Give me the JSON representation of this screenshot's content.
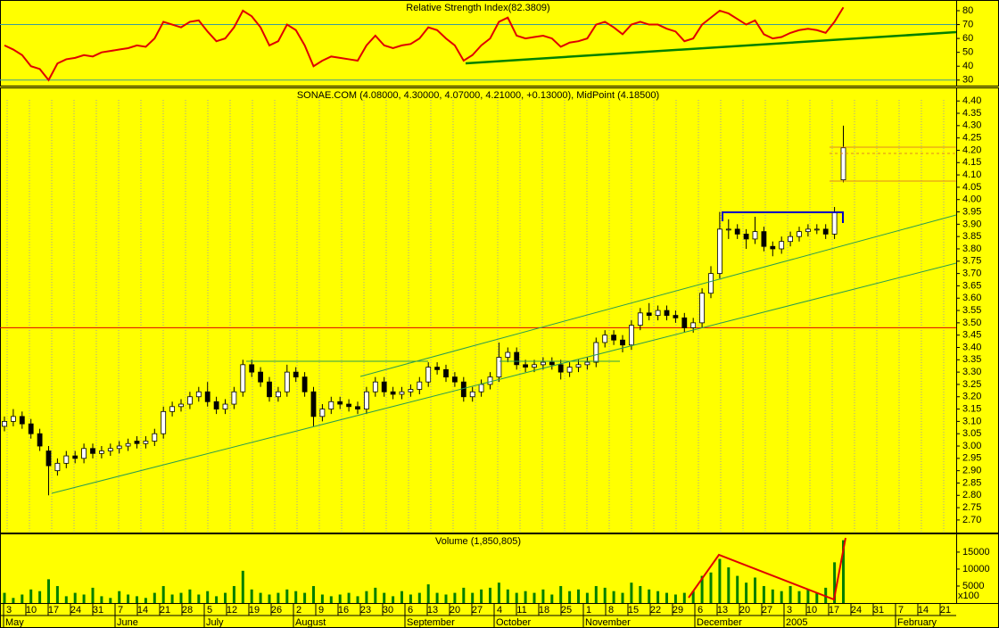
{
  "chart_data": [
    {
      "type": "line",
      "title": "Relative Strength Index(82.3809)",
      "color": "#e00000",
      "values": [
        55,
        52,
        48,
        40,
        38,
        30,
        42,
        45,
        46,
        48,
        47,
        50,
        51,
        52,
        53,
        55,
        54,
        60,
        72,
        70,
        68,
        72,
        73,
        65,
        58,
        60,
        68,
        80,
        76,
        68,
        55,
        58,
        70,
        66,
        55,
        40,
        44,
        47,
        46,
        45,
        44,
        55,
        62,
        55,
        53,
        55,
        56,
        60,
        68,
        66,
        60,
        55,
        44,
        48,
        55,
        60,
        72,
        75,
        62,
        60,
        61,
        62,
        60,
        54,
        57,
        58,
        60,
        70,
        72,
        68,
        63,
        70,
        72,
        70,
        70,
        67,
        65,
        58,
        60,
        70,
        75,
        80,
        78,
        74,
        70,
        73,
        63,
        60,
        61,
        64,
        66,
        67,
        66,
        64,
        72,
        82.3809
      ],
      "ylim": [
        26,
        87.7
      ],
      "yticks": [
        30,
        40,
        50,
        60,
        70,
        80
      ],
      "levels": [
        70,
        30
      ]
    },
    {
      "type": "candlestick",
      "title": "SONAE.COM (4.08000, 4.30000, 4.07000, 4.21000, +0.13000), MidPoint (4.18500)",
      "open": [
        3.08,
        3.1,
        3.12,
        3.09,
        3.05,
        2.98,
        2.9,
        2.93,
        2.96,
        2.95,
        2.99,
        2.97,
        2.98,
        2.99,
        3.0,
        3.02,
        3.01,
        3.02,
        3.05,
        3.14,
        3.16,
        3.17,
        3.2,
        3.22,
        3.18,
        3.15,
        3.17,
        3.22,
        3.33,
        3.3,
        3.26,
        3.2,
        3.22,
        3.3,
        3.28,
        3.22,
        3.12,
        3.15,
        3.18,
        3.17,
        3.16,
        3.15,
        3.22,
        3.26,
        3.22,
        3.21,
        3.22,
        3.23,
        3.26,
        3.32,
        3.31,
        3.28,
        3.26,
        3.2,
        3.22,
        3.25,
        3.28,
        3.36,
        3.38,
        3.33,
        3.32,
        3.33,
        3.34,
        3.33,
        3.3,
        3.32,
        3.33,
        3.34,
        3.42,
        3.45,
        3.43,
        3.41,
        3.49,
        3.54,
        3.53,
        3.55,
        3.53,
        3.52,
        3.48,
        3.5,
        3.62,
        3.7,
        3.88,
        3.88,
        3.86,
        3.84,
        3.87,
        3.81,
        3.8,
        3.83,
        3.85,
        3.87,
        3.88,
        3.88,
        3.86,
        4.08
      ],
      "high": [
        3.12,
        3.15,
        3.14,
        3.11,
        3.07,
        3.0,
        2.95,
        2.98,
        2.98,
        3.01,
        3.01,
        3.0,
        3.01,
        3.02,
        3.03,
        3.04,
        3.04,
        3.07,
        3.16,
        3.18,
        3.19,
        3.22,
        3.24,
        3.26,
        3.2,
        3.19,
        3.24,
        3.35,
        3.35,
        3.32,
        3.28,
        3.24,
        3.33,
        3.32,
        3.3,
        3.24,
        3.17,
        3.2,
        3.2,
        3.19,
        3.18,
        3.24,
        3.28,
        3.28,
        3.24,
        3.24,
        3.25,
        3.28,
        3.34,
        3.34,
        3.33,
        3.3,
        3.28,
        3.24,
        3.27,
        3.3,
        3.42,
        3.4,
        3.4,
        3.35,
        3.35,
        3.36,
        3.36,
        3.35,
        3.34,
        3.35,
        3.36,
        3.44,
        3.47,
        3.47,
        3.45,
        3.51,
        3.56,
        3.58,
        3.57,
        3.57,
        3.55,
        3.54,
        3.52,
        3.64,
        3.73,
        3.95,
        3.92,
        3.9,
        3.88,
        3.93,
        3.89,
        3.83,
        3.85,
        3.87,
        3.89,
        3.9,
        3.9,
        3.9,
        3.97,
        4.3
      ],
      "low": [
        3.06,
        3.08,
        3.07,
        3.03,
        2.98,
        2.8,
        2.88,
        2.91,
        2.93,
        2.93,
        2.95,
        2.95,
        2.96,
        2.97,
        2.98,
        2.99,
        2.99,
        3.0,
        3.03,
        3.12,
        3.14,
        3.15,
        3.18,
        3.16,
        3.13,
        3.13,
        3.15,
        3.2,
        3.28,
        3.24,
        3.18,
        3.18,
        3.2,
        3.26,
        3.2,
        3.08,
        3.1,
        3.13,
        3.15,
        3.14,
        3.13,
        3.13,
        3.2,
        3.2,
        3.19,
        3.19,
        3.2,
        3.21,
        3.24,
        3.29,
        3.26,
        3.24,
        3.18,
        3.18,
        3.2,
        3.23,
        3.26,
        3.34,
        3.31,
        3.3,
        3.3,
        3.31,
        3.31,
        3.27,
        3.28,
        3.3,
        3.31,
        3.32,
        3.4,
        3.41,
        3.38,
        3.39,
        3.47,
        3.51,
        3.51,
        3.51,
        3.5,
        3.46,
        3.46,
        3.48,
        3.6,
        3.68,
        3.84,
        3.84,
        3.8,
        3.82,
        3.79,
        3.77,
        3.78,
        3.81,
        3.83,
        3.85,
        3.86,
        3.84,
        3.84,
        4.07
      ],
      "close": [
        3.1,
        3.12,
        3.09,
        3.05,
        3.0,
        2.92,
        2.93,
        2.96,
        2.95,
        2.99,
        2.97,
        2.98,
        2.99,
        3.0,
        3.01,
        3.01,
        3.02,
        3.05,
        3.14,
        3.16,
        3.17,
        3.2,
        3.22,
        3.18,
        3.15,
        3.17,
        3.22,
        3.33,
        3.3,
        3.26,
        3.2,
        3.22,
        3.3,
        3.28,
        3.22,
        3.12,
        3.15,
        3.18,
        3.17,
        3.16,
        3.15,
        3.22,
        3.26,
        3.22,
        3.21,
        3.22,
        3.23,
        3.26,
        3.32,
        3.31,
        3.28,
        3.26,
        3.2,
        3.22,
        3.25,
        3.28,
        3.36,
        3.38,
        3.33,
        3.32,
        3.33,
        3.34,
        3.33,
        3.3,
        3.32,
        3.33,
        3.34,
        3.42,
        3.45,
        3.43,
        3.41,
        3.49,
        3.54,
        3.53,
        3.55,
        3.53,
        3.52,
        3.48,
        3.5,
        3.62,
        3.7,
        3.88,
        3.88,
        3.86,
        3.84,
        3.87,
        3.81,
        3.8,
        3.83,
        3.85,
        3.87,
        3.88,
        3.88,
        3.86,
        3.95,
        4.21
      ],
      "ylim": [
        2.649,
        4.455
      ],
      "yticks": [
        {
          "value": 2.7,
          "label": "2.70"
        },
        2.75,
        {
          "value": 2.8,
          "label": "2.80"
        },
        2.85,
        {
          "value": 2.9,
          "label": "2.90"
        },
        2.95,
        {
          "value": 3,
          "label": "3.00"
        },
        3.05,
        {
          "value": 3.1,
          "label": "3.10"
        },
        3.15,
        {
          "value": 3.2,
          "label": "3.20"
        },
        3.25,
        {
          "value": 3.3,
          "label": "3.30"
        },
        3.35,
        {
          "value": 3.4,
          "label": "3.40"
        },
        3.45,
        {
          "value": 3.5,
          "label": "3.50"
        },
        3.55,
        {
          "value": 3.6,
          "label": "3.60"
        },
        3.65,
        {
          "value": 3.7,
          "label": "3.70"
        },
        3.75,
        {
          "value": 3.8,
          "label": "3.80"
        },
        3.85,
        {
          "value": 3.9,
          "label": "3.90"
        },
        3.95,
        {
          "value": 4,
          "label": "4.00"
        },
        4.05,
        {
          "value": 4.1,
          "label": "4.10"
        },
        4.15,
        {
          "value": 4.2,
          "label": "4.20"
        },
        4.25,
        {
          "value": 4.3,
          "label": "4.30"
        },
        4.35,
        {
          "value": 4.4,
          "label": "4.40"
        }
      ],
      "levels": [
        3.48
      ]
    },
    {
      "type": "bar",
      "title": "Volume (1,850,805)",
      "color": "#008000",
      "unit_label": "x100",
      "values": [
        3000,
        1500,
        2500,
        4000,
        3500,
        7000,
        5000,
        2000,
        3000,
        2500,
        4500,
        2000,
        1500,
        3500,
        2500,
        2000,
        1500,
        3000,
        5000,
        2500,
        3000,
        4000,
        2500,
        3500,
        2000,
        3000,
        5000,
        9500,
        4000,
        3000,
        2500,
        3000,
        4000,
        3500,
        3000,
        5000,
        2500,
        2000,
        2500,
        3000,
        2000,
        3500,
        4500,
        3000,
        2000,
        3500,
        2500,
        3000,
        5500,
        3000,
        2500,
        3000,
        4500,
        3000,
        4000,
        4500,
        6000,
        4000,
        3000,
        3500,
        3000,
        4000,
        2500,
        5000,
        3500,
        4000,
        3000,
        5000,
        4500,
        3500,
        3000,
        6000,
        5000,
        4000,
        3500,
        3000,
        2500,
        3000,
        3500,
        8000,
        9000,
        13000,
        10500,
        8000,
        6000,
        7500,
        5000,
        4000,
        3500,
        5000,
        3500,
        4000,
        3000,
        4500,
        12000,
        18508.05
      ],
      "ylim": [
        0,
        20500
      ],
      "yticks": [
        5000,
        10000,
        15000
      ]
    }
  ],
  "date_axis": {
    "days": [
      "3",
      "10",
      "17",
      "24",
      "31",
      "7",
      "14",
      "21",
      "28",
      "5",
      "12",
      "19",
      "26",
      "2",
      "9",
      "16",
      "23",
      "30",
      "6",
      "13",
      "20",
      "27",
      "4",
      "11",
      "18",
      "25",
      "1",
      "8",
      "15",
      "22",
      "29",
      "6",
      "13",
      "20",
      "27",
      "3",
      "10",
      "17",
      "24",
      "31",
      "7",
      "14",
      "21"
    ],
    "months": [
      "May",
      null,
      null,
      null,
      null,
      "June",
      null,
      null,
      null,
      "July",
      null,
      null,
      null,
      "August",
      null,
      null,
      null,
      null,
      "September",
      null,
      null,
      null,
      "October",
      null,
      null,
      null,
      "November",
      null,
      null,
      null,
      null,
      "December",
      null,
      null,
      null,
      "2005",
      null,
      null,
      null,
      null,
      "February",
      null,
      null
    ]
  }
}
